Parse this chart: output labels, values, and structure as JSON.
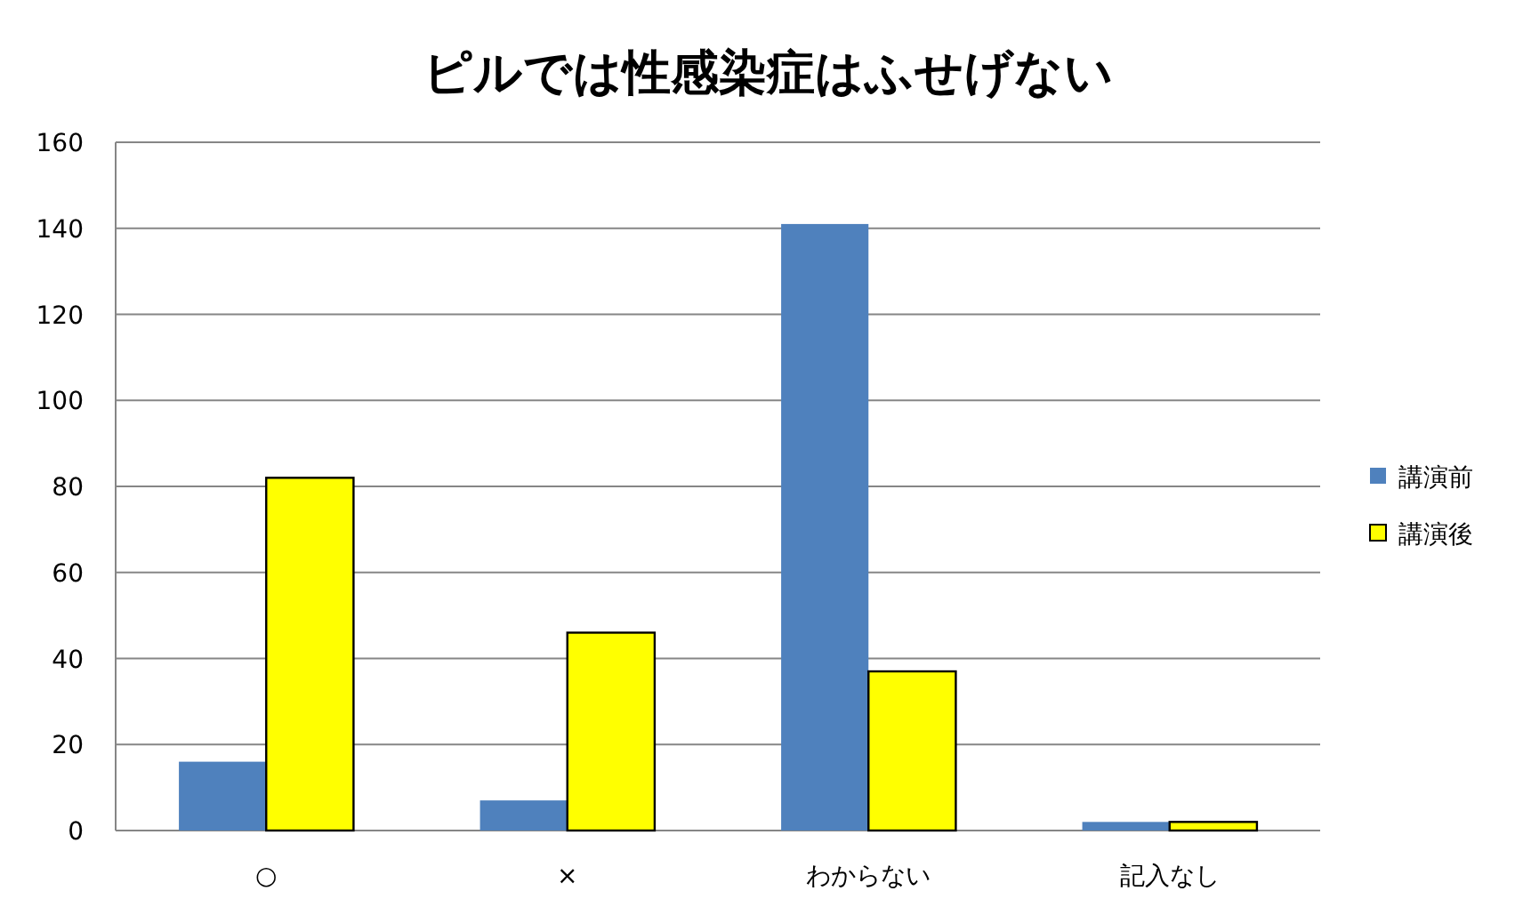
{
  "chart_data": {
    "type": "bar",
    "title": "ピルでは性感染症はふせげない",
    "categories": [
      "○",
      "×",
      "わからない",
      "記入なし"
    ],
    "series": [
      {
        "name": "講演前",
        "color": "#4f81bd",
        "values": [
          16,
          7,
          141,
          2
        ]
      },
      {
        "name": "講演後",
        "color": "#ffff00",
        "values": [
          82,
          46,
          37,
          2
        ]
      }
    ],
    "ylim": [
      0,
      160
    ],
    "yticks": [
      0,
      20,
      40,
      60,
      80,
      100,
      120,
      140,
      160
    ],
    "grid": "y",
    "legend": "right"
  }
}
